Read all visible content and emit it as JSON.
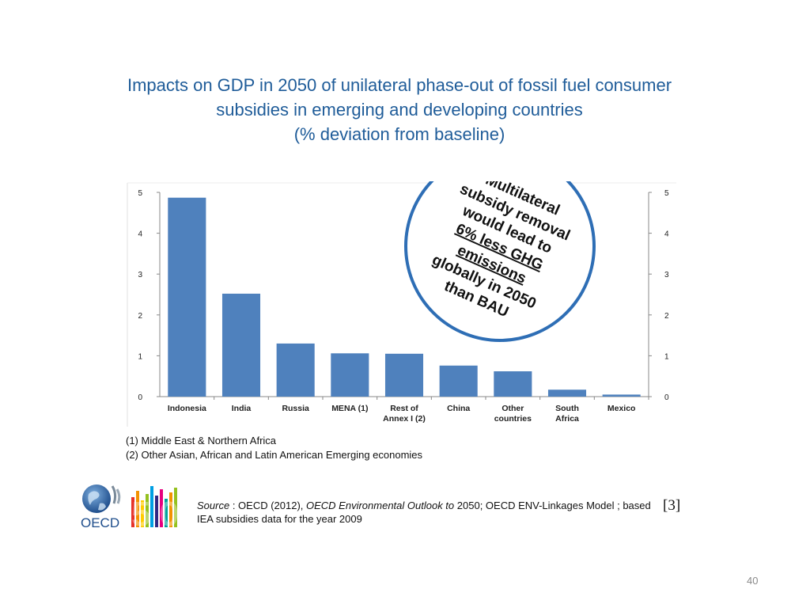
{
  "slide": {
    "title_lines": [
      "Impacts on GDP in 2050 of unilateral phase-out of fossil fuel consumer",
      "subsidies in emerging and developing countries",
      "(% deviation from baseline)"
    ],
    "footnotes": [
      "(1) Middle East & Northern Africa",
      "(2) Other Asian, African and Latin American Emerging economies"
    ],
    "source": {
      "label": "Source",
      "sep": " : OECD (2012), ",
      "title": "OECD Environmental Outlook to",
      "rest": " 2050; OECD ENV-Linkages Model ; based IEA subsidies data for the year 2009"
    },
    "citation": "[3]",
    "page_number": "40",
    "logo": {
      "text": "OECD",
      "anniversary": "50"
    }
  },
  "callout": {
    "lines": [
      "Multilateral",
      "subsidy removal",
      "would lead to",
      "6% less GHG",
      "emissions",
      "globally in 2050",
      "than BAU"
    ],
    "underlined_lines": [
      3,
      4
    ]
  },
  "chart_data": {
    "type": "bar",
    "title": "Impacts on GDP in 2050 of unilateral phase-out of fossil fuel consumer subsidies in emerging and developing countries (% deviation from baseline)",
    "categories": [
      [
        "Indonesia"
      ],
      [
        "India"
      ],
      [
        "Russia"
      ],
      [
        "MENA (1)"
      ],
      [
        "Rest of",
        "Annex I (2)"
      ],
      [
        "China"
      ],
      [
        "Other",
        "countries"
      ],
      [
        "South",
        "Africa"
      ],
      [
        "Mexico"
      ]
    ],
    "values": [
      4.87,
      2.52,
      1.3,
      1.06,
      1.05,
      0.76,
      0.62,
      0.17,
      0.05
    ],
    "ylim": [
      0,
      5
    ],
    "yticks": [
      "0",
      "1",
      "2",
      "3",
      "4",
      "5"
    ],
    "xlabel": "",
    "ylabel": "",
    "grid": false,
    "colors": {
      "bar": "#4F81BD",
      "axis": "#888888",
      "circle": "#2E6EB5",
      "title": "#1F5C99"
    }
  }
}
